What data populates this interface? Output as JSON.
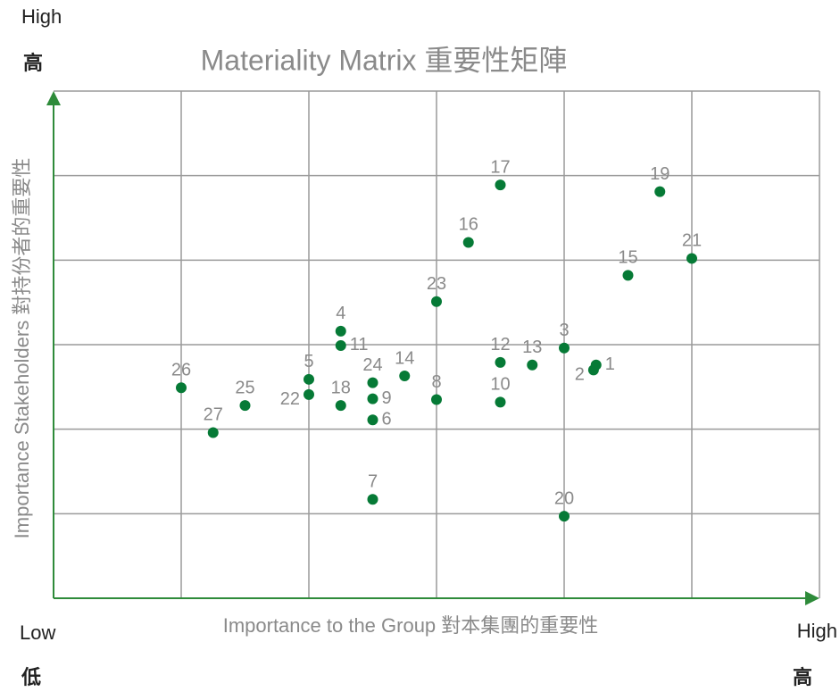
{
  "chart_data": {
    "type": "scatter",
    "title": "Materiality Matrix 重要性矩陣",
    "x_label": "Importance to the Group 對本集團的重要性",
    "y_label": "Importance Stakeholders 對持份者的重要性",
    "y_high": "High",
    "y_high_zh": "高",
    "x_low": "Low",
    "x_low_zh": "低",
    "x_high": "High",
    "x_high_zh": "高",
    "color": "#067a36",
    "xlim": [
      0,
      6
    ],
    "ylim": [
      0,
      6
    ],
    "grid": true,
    "labels": [
      "1",
      "2",
      "3",
      "4",
      "5",
      "6",
      "7",
      "8",
      "9",
      "10",
      "11",
      "12",
      "13",
      "14",
      "15",
      "16",
      "17",
      "18",
      "19",
      "20",
      "21",
      "22",
      "23",
      "24",
      "25",
      "26",
      "27"
    ],
    "x": [
      4.25,
      4.23,
      4,
      2.25,
      2,
      2.5,
      2.5,
      3,
      2.5,
      3.5,
      2.25,
      3.5,
      3.75,
      2.75,
      4.5,
      3.25,
      3.5,
      2.25,
      4.75,
      4,
      5,
      2,
      3,
      2.5,
      1.5,
      1,
      1.25
    ],
    "y": [
      2.76,
      2.7,
      2.96,
      3.16,
      2.59,
      2.11,
      1.17,
      2.35,
      2.36,
      2.32,
      2.99,
      2.79,
      2.76,
      2.63,
      3.82,
      4.21,
      4.89,
      2.28,
      4.81,
      0.97,
      4.02,
      2.41,
      3.51,
      2.55,
      2.28,
      2.49,
      1.96
    ]
  }
}
